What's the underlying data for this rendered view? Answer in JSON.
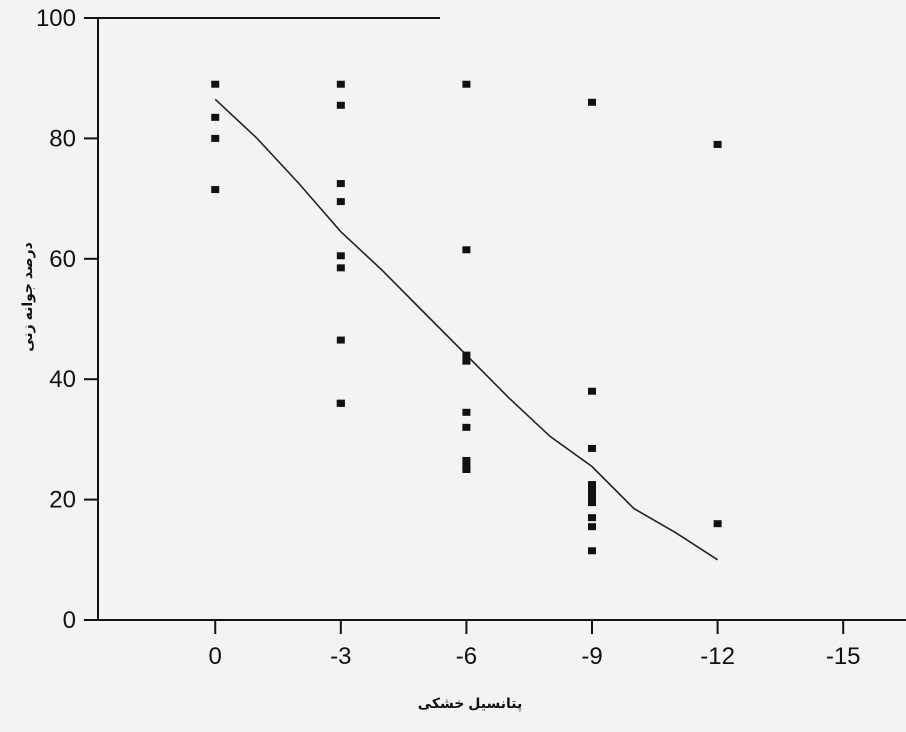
{
  "chart_data": {
    "type": "scatter",
    "title": "",
    "xlabel": "پتانسیل خشکی",
    "ylabel": "درصد جوانه زنی",
    "x_ticks": [
      0,
      -3,
      -6,
      -9,
      -12,
      -15
    ],
    "x_tick_labels": [
      "0",
      "-3",
      "-6",
      "-9",
      "-12",
      "-15"
    ],
    "y_ticks": [
      0,
      20,
      40,
      60,
      80,
      100
    ],
    "y_tick_labels": [
      "0",
      "20",
      "40",
      "60",
      "80",
      "100"
    ],
    "xlim": [
      2.8,
      -16.5
    ],
    "ylim": [
      0,
      100
    ],
    "grid": false,
    "legend": "none",
    "colors": {
      "marker": "#111111",
      "line": "#222222",
      "axis": "#111111",
      "background": "#f3f3f1"
    },
    "series": [
      {
        "kind": "points",
        "x": [
          0,
          0,
          0,
          0,
          -3,
          -3,
          -3,
          -3,
          -3,
          -3,
          -3,
          -3,
          -3,
          -6,
          -6,
          -6,
          -6,
          -6,
          -6,
          -6,
          -6,
          -6,
          -9,
          -9,
          -9,
          -9,
          -9,
          -9,
          -9,
          -9,
          -9,
          -9,
          -12,
          -12
        ],
        "y": [
          89,
          83.5,
          80,
          71.5,
          89,
          85.5,
          72.5,
          69.5,
          60.5,
          58.5,
          46.5,
          36,
          36,
          89,
          61.5,
          44,
          43,
          34.5,
          32,
          26.5,
          25.5,
          25,
          86,
          38,
          28.5,
          22.5,
          21.5,
          20.5,
          19.5,
          17,
          15.5,
          11.5,
          79,
          16
        ]
      },
      {
        "kind": "trend-line",
        "x": [
          0,
          -1,
          -2,
          -3,
          -4,
          -5,
          -6,
          -7,
          -8,
          -9,
          -10,
          -11,
          -12
        ],
        "y": [
          86.5,
          80,
          72.5,
          64.5,
          58,
          51,
          44,
          37,
          30.5,
          25.5,
          18.5,
          14.5,
          10
        ]
      }
    ]
  }
}
